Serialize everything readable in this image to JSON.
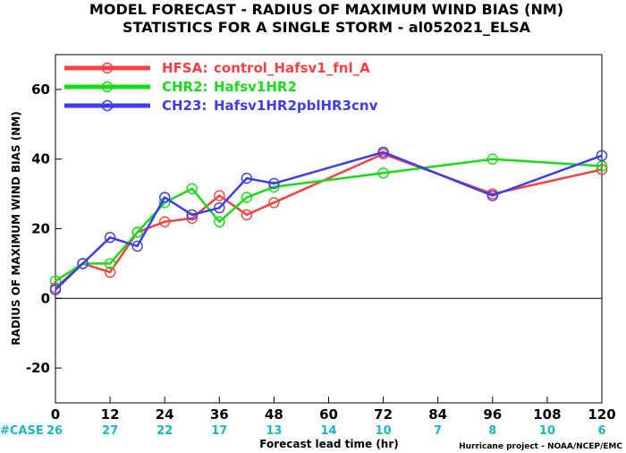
{
  "chart_data": {
    "type": "line",
    "title": "MODEL FORECAST - RADIUS OF MAXIMUM WIND BIAS (NM)",
    "subtitle": "STATISTICS FOR A SINGLE STORM - al052021_ELSA",
    "xlabel": "Forecast lead time (hr)",
    "ylabel": "RADIUS OF MAXIMUM WIND BIAS (NM)",
    "xlim": [
      0,
      120
    ],
    "ylim": [
      -30,
      70
    ],
    "xticks": [
      0,
      12,
      24,
      36,
      48,
      60,
      72,
      84,
      96,
      108,
      120
    ],
    "yticks": [
      -20,
      0,
      20,
      40,
      60
    ],
    "zero_line": true,
    "legend_position": "top-left",
    "case_label": "#CASE",
    "case_x": [
      0,
      12,
      24,
      36,
      48,
      60,
      72,
      84,
      96,
      108,
      120
    ],
    "case_counts": [
      "26",
      "27",
      "22",
      "17",
      "13",
      "14",
      "10",
      "7",
      "8",
      "10",
      "6"
    ],
    "credit": "Hurricane project - NOAA/NCEP/EMC",
    "series": [
      {
        "name": "HFSA:",
        "desc": "control_Hafsv1_fnl_A",
        "color": "#ff4040",
        "x": [
          0,
          6,
          12,
          18,
          24,
          30,
          36,
          42,
          48,
          72,
          96,
          120
        ],
        "y": [
          3,
          10,
          7.5,
          19,
          22,
          23,
          29.5,
          24,
          27.5,
          41.5,
          30,
          37
        ]
      },
      {
        "name": "CHR2:",
        "desc": "Hafsv1HR2",
        "color": "#18dc18",
        "x": [
          0,
          6,
          12,
          18,
          24,
          30,
          36,
          42,
          48,
          72,
          96,
          120
        ],
        "y": [
          5,
          10,
          10,
          19,
          27.5,
          31.5,
          22,
          29,
          32,
          36,
          40,
          38
        ]
      },
      {
        "name": "CH23:",
        "desc": "Hafsv1HR2pblHR3cnv",
        "color": "#3c3cf0",
        "x": [
          0,
          6,
          12,
          18,
          24,
          30,
          36,
          42,
          48,
          72,
          96,
          120
        ],
        "y": [
          2.5,
          10,
          17.5,
          15,
          29,
          24,
          26,
          34.5,
          33,
          42,
          29.5,
          41
        ]
      }
    ]
  }
}
